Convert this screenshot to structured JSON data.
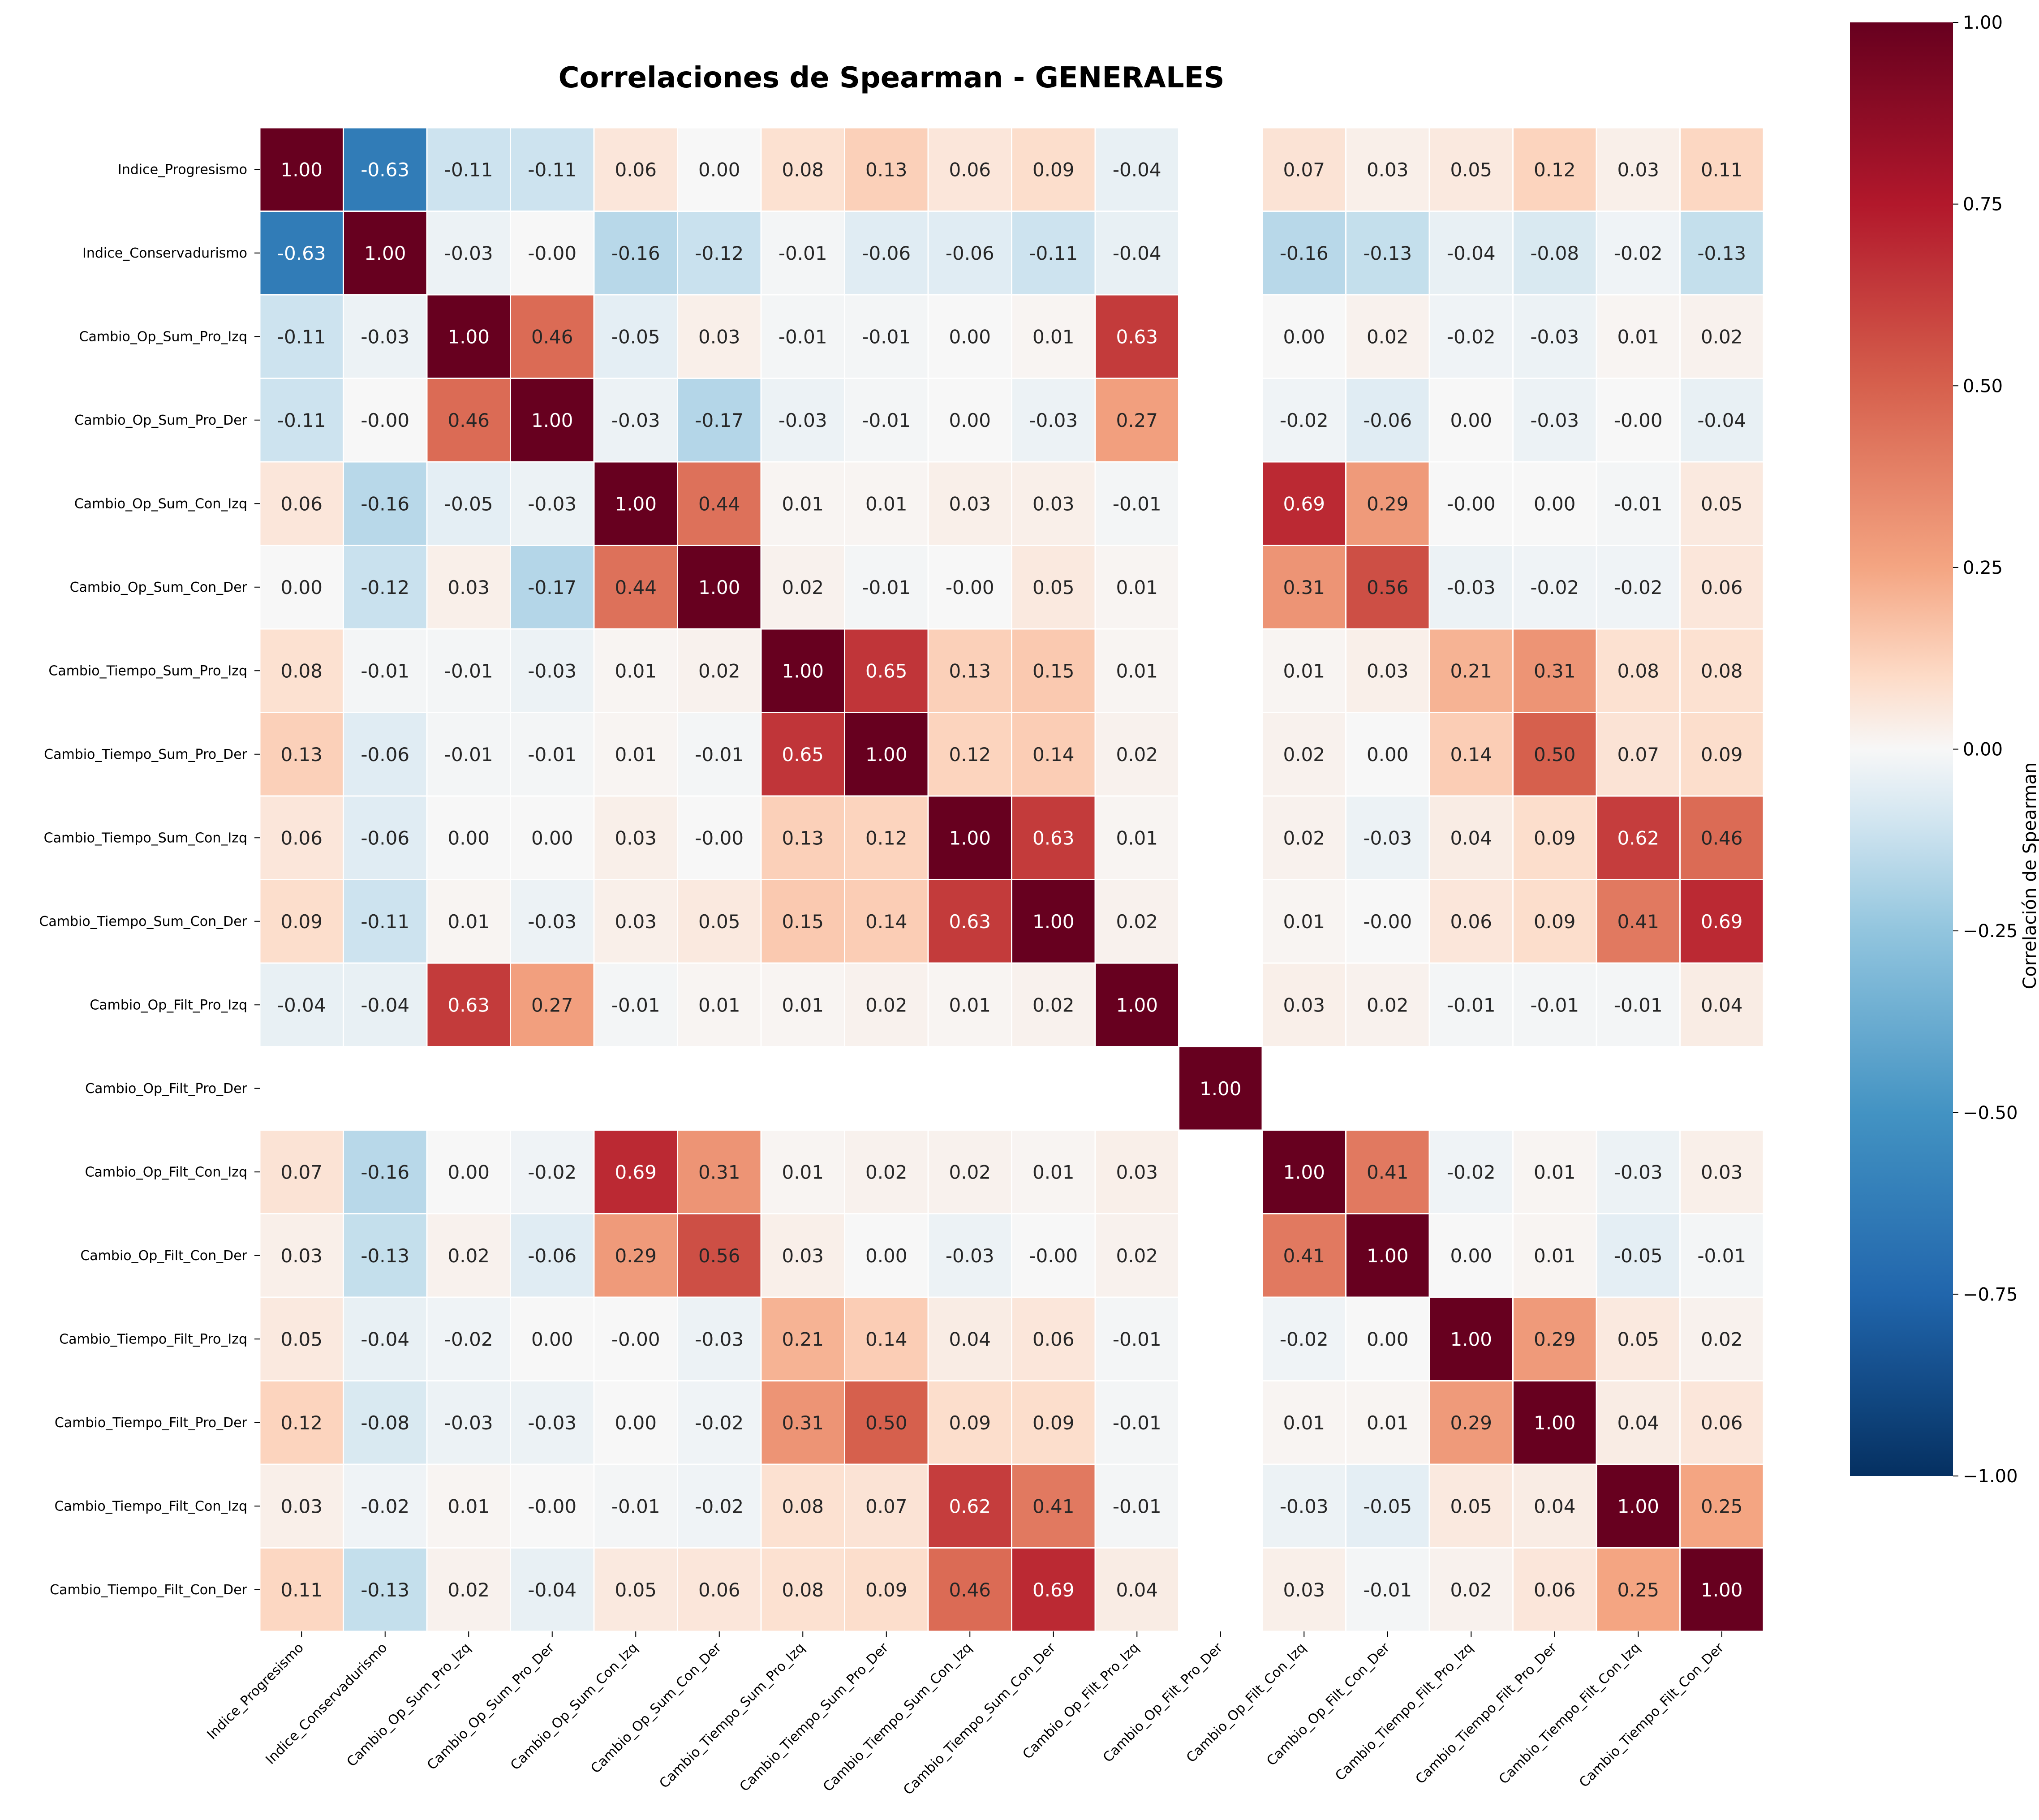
{
  "chart_data": {
    "type": "heatmap",
    "title": "Correlaciones de Spearman - GENERALES",
    "colorbar_label": "Correlación de Spearman",
    "colormap": "RdBu_r",
    "vmin": -1.0,
    "vmax": 1.0,
    "colorbar_ticks": [
      "1.00",
      "0.75",
      "0.50",
      "0.25",
      "0.00",
      "−0.25",
      "−0.50",
      "−0.75",
      "−1.00"
    ],
    "colorbar_tick_values": [
      1.0,
      0.75,
      0.5,
      0.25,
      0.0,
      -0.25,
      -0.5,
      -0.75,
      -1.0
    ],
    "labels": [
      "Indice_Progresismo",
      "Indice_Conservadurismo",
      "Cambio_Op_Sum_Pro_Izq",
      "Cambio_Op_Sum_Pro_Der",
      "Cambio_Op_Sum_Con_Izq",
      "Cambio_Op_Sum_Con_Der",
      "Cambio_Tiempo_Sum_Pro_Izq",
      "Cambio_Tiempo_Sum_Pro_Der",
      "Cambio_Tiempo_Sum_Con_Izq",
      "Cambio_Tiempo_Sum_Con_Der",
      "Cambio_Op_Filt_Pro_Izq",
      "Cambio_Op_Filt_Pro_Der",
      "Cambio_Op_Filt_Con_Izq",
      "Cambio_Op_Filt_Con_Der",
      "Cambio_Tiempo_Filt_Pro_Izq",
      "Cambio_Tiempo_Filt_Pro_Der",
      "Cambio_Tiempo_Filt_Con_Izq",
      "Cambio_Tiempo_Filt_Con_Der"
    ],
    "matrix": [
      [
        "1.00",
        "-0.63",
        "-0.11",
        "-0.11",
        "0.06",
        "0.00",
        "0.08",
        "0.13",
        "0.06",
        "0.09",
        "-0.04",
        null,
        "0.07",
        "0.03",
        "0.05",
        "0.12",
        "0.03",
        "0.11"
      ],
      [
        "-0.63",
        "1.00",
        "-0.03",
        "-0.00",
        "-0.16",
        "-0.12",
        "-0.01",
        "-0.06",
        "-0.06",
        "-0.11",
        "-0.04",
        null,
        "-0.16",
        "-0.13",
        "-0.04",
        "-0.08",
        "-0.02",
        "-0.13"
      ],
      [
        "-0.11",
        "-0.03",
        "1.00",
        "0.46",
        "-0.05",
        "0.03",
        "-0.01",
        "-0.01",
        "0.00",
        "0.01",
        "0.63",
        null,
        "0.00",
        "0.02",
        "-0.02",
        "-0.03",
        "0.01",
        "0.02"
      ],
      [
        "-0.11",
        "-0.00",
        "0.46",
        "1.00",
        "-0.03",
        "-0.17",
        "-0.03",
        "-0.01",
        "0.00",
        "-0.03",
        "0.27",
        null,
        "-0.02",
        "-0.06",
        "0.00",
        "-0.03",
        "-0.00",
        "-0.04"
      ],
      [
        "0.06",
        "-0.16",
        "-0.05",
        "-0.03",
        "1.00",
        "0.44",
        "0.01",
        "0.01",
        "0.03",
        "0.03",
        "-0.01",
        null,
        "0.69",
        "0.29",
        "-0.00",
        "0.00",
        "-0.01",
        "0.05"
      ],
      [
        "0.00",
        "-0.12",
        "0.03",
        "-0.17",
        "0.44",
        "1.00",
        "0.02",
        "-0.01",
        "-0.00",
        "0.05",
        "0.01",
        null,
        "0.31",
        "0.56",
        "-0.03",
        "-0.02",
        "-0.02",
        "0.06"
      ],
      [
        "0.08",
        "-0.01",
        "-0.01",
        "-0.03",
        "0.01",
        "0.02",
        "1.00",
        "0.65",
        "0.13",
        "0.15",
        "0.01",
        null,
        "0.01",
        "0.03",
        "0.21",
        "0.31",
        "0.08",
        "0.08"
      ],
      [
        "0.13",
        "-0.06",
        "-0.01",
        "-0.01",
        "0.01",
        "-0.01",
        "0.65",
        "1.00",
        "0.12",
        "0.14",
        "0.02",
        null,
        "0.02",
        "0.00",
        "0.14",
        "0.50",
        "0.07",
        "0.09"
      ],
      [
        "0.06",
        "-0.06",
        "0.00",
        "0.00",
        "0.03",
        "-0.00",
        "0.13",
        "0.12",
        "1.00",
        "0.63",
        "0.01",
        null,
        "0.02",
        "-0.03",
        "0.04",
        "0.09",
        "0.62",
        "0.46"
      ],
      [
        "0.09",
        "-0.11",
        "0.01",
        "-0.03",
        "0.03",
        "0.05",
        "0.15",
        "0.14",
        "0.63",
        "1.00",
        "0.02",
        null,
        "0.01",
        "-0.00",
        "0.06",
        "0.09",
        "0.41",
        "0.69"
      ],
      [
        "-0.04",
        "-0.04",
        "0.63",
        "0.27",
        "-0.01",
        "0.01",
        "0.01",
        "0.02",
        "0.01",
        "0.02",
        "1.00",
        null,
        "0.03",
        "0.02",
        "-0.01",
        "-0.01",
        "-0.01",
        "0.04"
      ],
      [
        null,
        null,
        null,
        null,
        null,
        null,
        null,
        null,
        null,
        null,
        null,
        "1.00",
        null,
        null,
        null,
        null,
        null,
        null
      ],
      [
        "0.07",
        "-0.16",
        "0.00",
        "-0.02",
        "0.69",
        "0.31",
        "0.01",
        "0.02",
        "0.02",
        "0.01",
        "0.03",
        null,
        "1.00",
        "0.41",
        "-0.02",
        "0.01",
        "-0.03",
        "0.03"
      ],
      [
        "0.03",
        "-0.13",
        "0.02",
        "-0.06",
        "0.29",
        "0.56",
        "0.03",
        "0.00",
        "-0.03",
        "-0.00",
        "0.02",
        null,
        "0.41",
        "1.00",
        "0.00",
        "0.01",
        "-0.05",
        "-0.01"
      ],
      [
        "0.05",
        "-0.04",
        "-0.02",
        "0.00",
        "-0.00",
        "-0.03",
        "0.21",
        "0.14",
        "0.04",
        "0.06",
        "-0.01",
        null,
        "-0.02",
        "0.00",
        "1.00",
        "0.29",
        "0.05",
        "0.02"
      ],
      [
        "0.12",
        "-0.08",
        "-0.03",
        "-0.03",
        "0.00",
        "-0.02",
        "0.31",
        "0.50",
        "0.09",
        "0.09",
        "-0.01",
        null,
        "0.01",
        "0.01",
        "0.29",
        "1.00",
        "0.04",
        "0.06"
      ],
      [
        "0.03",
        "-0.02",
        "0.01",
        "-0.00",
        "-0.01",
        "-0.02",
        "0.08",
        "0.07",
        "0.62",
        "0.41",
        "-0.01",
        null,
        "-0.03",
        "-0.05",
        "0.05",
        "0.04",
        "1.00",
        "0.25"
      ],
      [
        "0.11",
        "-0.13",
        "0.02",
        "-0.04",
        "0.05",
        "0.06",
        "0.08",
        "0.09",
        "0.46",
        "0.69",
        "0.04",
        null,
        "0.03",
        "-0.01",
        "0.02",
        "0.06",
        "0.25",
        "1.00"
      ]
    ]
  }
}
